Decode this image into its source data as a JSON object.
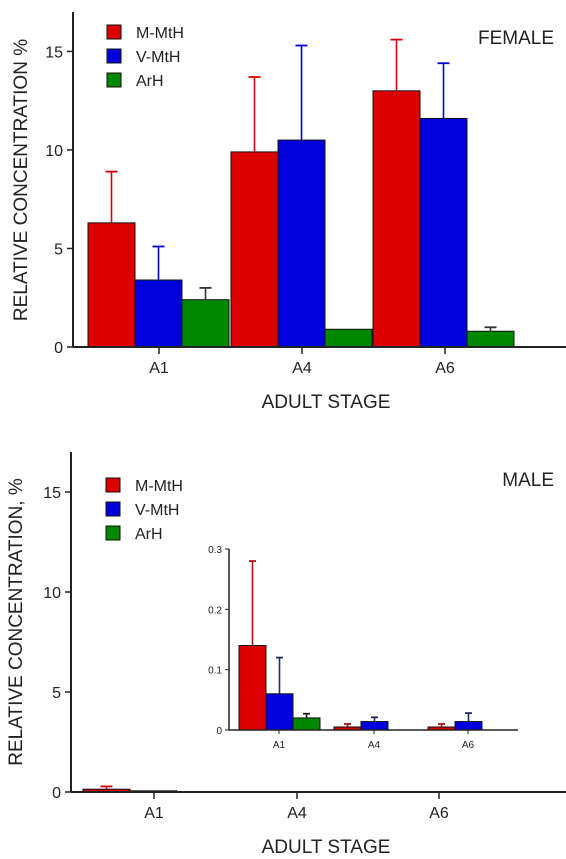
{
  "chart_data": [
    {
      "type": "bar",
      "panel_label": "FEMALE",
      "xlabel": "ADULT STAGE",
      "ylabel": "RELATIVE CONCENTRATION %",
      "categories": [
        "A1",
        "A4",
        "A6"
      ],
      "ylim": [
        0,
        17
      ],
      "yticks": [
        0,
        5,
        10,
        15
      ],
      "legend_position": "top-left",
      "series": [
        {
          "name": "M-MtH",
          "color": "#dd0000",
          "values": [
            6.3,
            9.9,
            13.0
          ],
          "errors": [
            2.6,
            3.8,
            2.6
          ]
        },
        {
          "name": "V-MtH",
          "color": "#0000dd",
          "values": [
            3.4,
            10.5,
            11.6
          ],
          "errors": [
            1.7,
            4.8,
            2.8
          ]
        },
        {
          "name": "ArH",
          "color": "#008800",
          "values": [
            2.4,
            0.9,
            0.8
          ],
          "errors": [
            0.6,
            0.0,
            0.2
          ]
        }
      ]
    },
    {
      "type": "bar",
      "panel_label": "MALE",
      "xlabel": "ADULT STAGE",
      "ylabel": "RELATIVE CONCENTRATION, %",
      "categories": [
        "A1",
        "A4",
        "A6"
      ],
      "ylim": [
        0,
        17
      ],
      "yticks": [
        0,
        5,
        10,
        15
      ],
      "legend_position": "top-left",
      "series": [
        {
          "name": "M-MtH",
          "color": "#dd0000",
          "values": [
            0.14,
            0.005,
            0.005
          ],
          "errors": [
            0.14,
            0.005,
            0.005
          ]
        },
        {
          "name": "V-MtH",
          "color": "#0000dd",
          "values": [
            0.06,
            0.014,
            0.014
          ],
          "errors": [
            0.06,
            0.007,
            0.014
          ]
        },
        {
          "name": "ArH",
          "color": "#008800",
          "values": [
            0.02,
            0.0,
            0.0
          ],
          "errors": [
            0.007,
            0.0,
            0.0
          ]
        }
      ],
      "inset": {
        "categories": [
          "A1",
          "A4",
          "A6"
        ],
        "ylim": [
          0,
          0.3
        ],
        "yticks": [
          0,
          0.1,
          0.2,
          0.3
        ]
      }
    }
  ]
}
